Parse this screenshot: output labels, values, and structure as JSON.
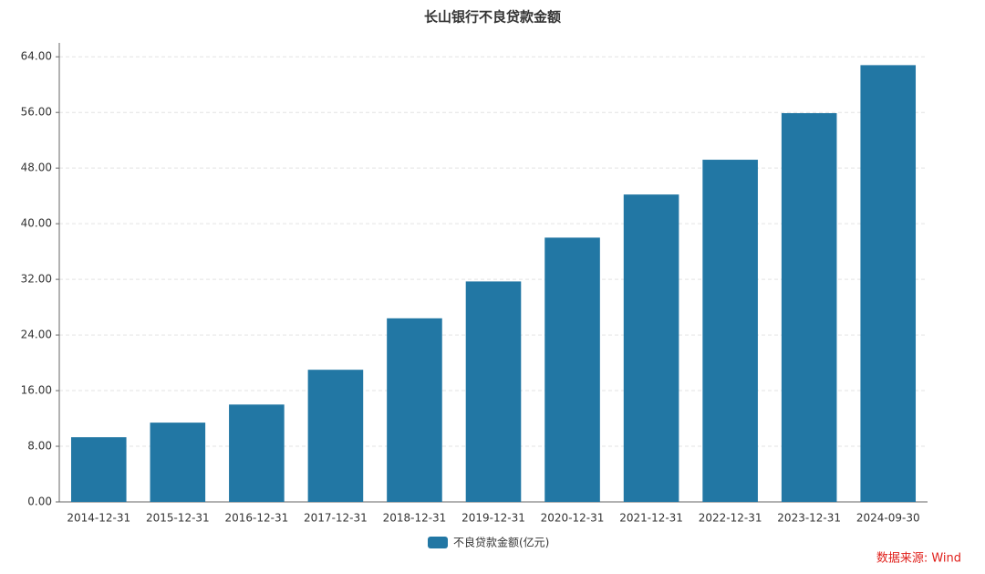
{
  "chart_data": {
    "type": "bar",
    "title": "长山银行不良贷款金额",
    "categories": [
      "2014-12-31",
      "2015-12-31",
      "2016-12-31",
      "2017-12-31",
      "2018-12-31",
      "2019-12-31",
      "2020-12-31",
      "2021-12-31",
      "2022-12-31",
      "2023-12-31",
      "2024-09-30"
    ],
    "series": [
      {
        "name": "不良贷款金额(亿元)",
        "color": "#2277a4",
        "values": [
          9.3,
          11.4,
          14.0,
          19.0,
          26.4,
          31.7,
          38.0,
          44.2,
          49.2,
          55.9,
          62.8
        ]
      }
    ],
    "ylim": [
      0,
      66
    ],
    "yticks": [
      {
        "value": 0,
        "label": "0.00"
      },
      {
        "value": 8,
        "label": "8.00"
      },
      {
        "value": 16,
        "label": "16.00"
      },
      {
        "value": 24,
        "label": "24.00"
      },
      {
        "value": 32,
        "label": "32.00"
      },
      {
        "value": 40,
        "label": "40.00"
      },
      {
        "value": 48,
        "label": "48.00"
      },
      {
        "value": 56,
        "label": "56.00"
      },
      {
        "value": 64,
        "label": "64.00"
      }
    ],
    "grid": true,
    "source": "数据来源: Wind"
  }
}
